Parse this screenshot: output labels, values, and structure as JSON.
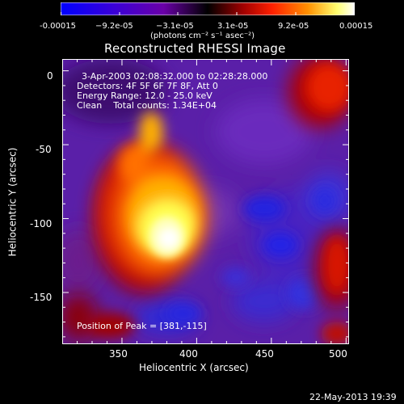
{
  "colorbar": {
    "ticks": [
      "-0.00015",
      "−9.2e-05",
      "−3.1e-05",
      "3.1e-05",
      "9.2e-05",
      "0.00015"
    ],
    "unit_label": "(photons cm⁻² s⁻¹ asec⁻²)",
    "colormap": [
      "#0000ff",
      "#2b00e0",
      "#7a00b0",
      "#000000",
      "#8c0000",
      "#ff3000",
      "#ff9000",
      "#ffff80",
      "#ffffff"
    ]
  },
  "plot": {
    "title": "Reconstructed RHESSI Image",
    "time_range": "3-Apr-2003 02:08:32.000 to 02:28:28.000",
    "detectors": "Detectors: 4F 5F 6F 7F 8F, Att 0",
    "energy_range": "Energy Range: 12.0 - 25.0 keV",
    "clean_counts": "Clean    Total counts: 1.34E+04",
    "peak_label": "Position of Peak = [381,-115]",
    "x_axis_label": "Heliocentric X (arcsec)",
    "y_axis_label": "Heliocentric Y (arcsec)",
    "x_ticks": [
      "350",
      "400",
      "450",
      "500"
    ],
    "y_ticks": [
      "0",
      "-50",
      "-100",
      "-150"
    ],
    "x_range": [
      310,
      502
    ],
    "y_range": [
      -185,
      8
    ]
  },
  "footer": {
    "date": "22-May-2013 19:39"
  }
}
